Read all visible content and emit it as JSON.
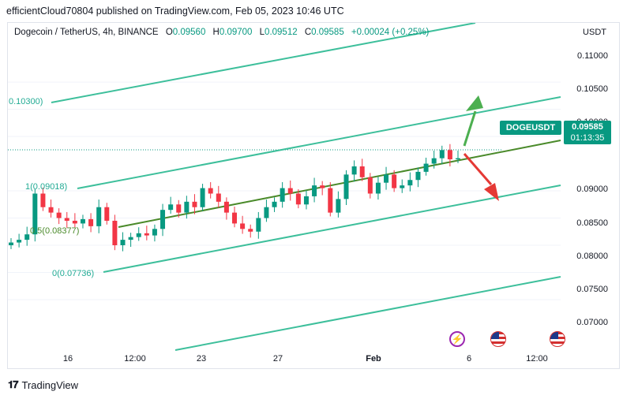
{
  "header": {
    "text": "efficientCloud70804 published on TradingView.com, Feb 05, 2023 10:46 UTC"
  },
  "legend": {
    "symbol": "Dogecoin / TetherUS, 4h, BINANCE",
    "open_label": "O",
    "open": "0.09560",
    "high_label": "H",
    "high": "0.09700",
    "low_label": "L",
    "low": "0.09512",
    "close_label": "C",
    "close": "0.09585",
    "change": "+0.00024 (+0.25%)"
  },
  "price_scale": {
    "currency": "USDT",
    "labels": [
      "0.11000",
      "0.10500",
      "0.10000",
      "0.09000",
      "0.08500",
      "0.08000",
      "0.07500",
      "0.07000"
    ]
  },
  "time_scale": {
    "labels": [
      "16",
      "12:00",
      "23",
      "27",
      "Feb",
      "6",
      "12:00"
    ]
  },
  "fib_labels": {
    "top": "0.10300)",
    "level_1": "1(0.09018)",
    "level_05": "0.5(0.08377)",
    "level_0": "0(0.07736)"
  },
  "badges": {
    "symbol": "DOGEUSDT",
    "price": "0.09585",
    "countdown": "01:13:35"
  },
  "footer": {
    "brand": "TradingView"
  },
  "colors": {
    "up": "#089981",
    "down": "#f23645",
    "channel": "#3dbf9b",
    "midline": "#4a8a2a",
    "arrow_up": "#4caf50",
    "arrow_down": "#e53935"
  },
  "chart_data": {
    "type": "candlestick",
    "title": "Dogecoin / TetherUS, 4h, BINANCE",
    "ylim": [
      0.0655,
      0.1148
    ],
    "y_ticks": [
      0.11,
      0.105,
      0.1,
      0.09,
      0.085,
      0.08,
      0.075,
      0.07
    ],
    "x_ticks": [
      "16",
      "12:00",
      "23",
      "27",
      "Feb",
      "6",
      "12:00"
    ],
    "last_price": 0.09585,
    "close_series": [
      0.0805,
      0.081,
      0.082,
      0.0895,
      0.087,
      0.086,
      0.085,
      0.0845,
      0.084,
      0.0848,
      0.0835,
      0.087,
      0.0845,
      0.08,
      0.081,
      0.0815,
      0.0822,
      0.0818,
      0.083,
      0.0865,
      0.0875,
      0.086,
      0.088,
      0.087,
      0.0905,
      0.0895,
      0.088,
      0.086,
      0.084,
      0.083,
      0.0825,
      0.085,
      0.087,
      0.088,
      0.0905,
      0.0895,
      0.0875,
      0.089,
      0.091,
      0.0905,
      0.086,
      0.0885,
      0.093,
      0.0945,
      0.0925,
      0.0895,
      0.0915,
      0.093,
      0.0905,
      0.091,
      0.092,
      0.0935,
      0.095,
      0.096,
      0.0975,
      0.0958,
      0.096
    ]
  }
}
